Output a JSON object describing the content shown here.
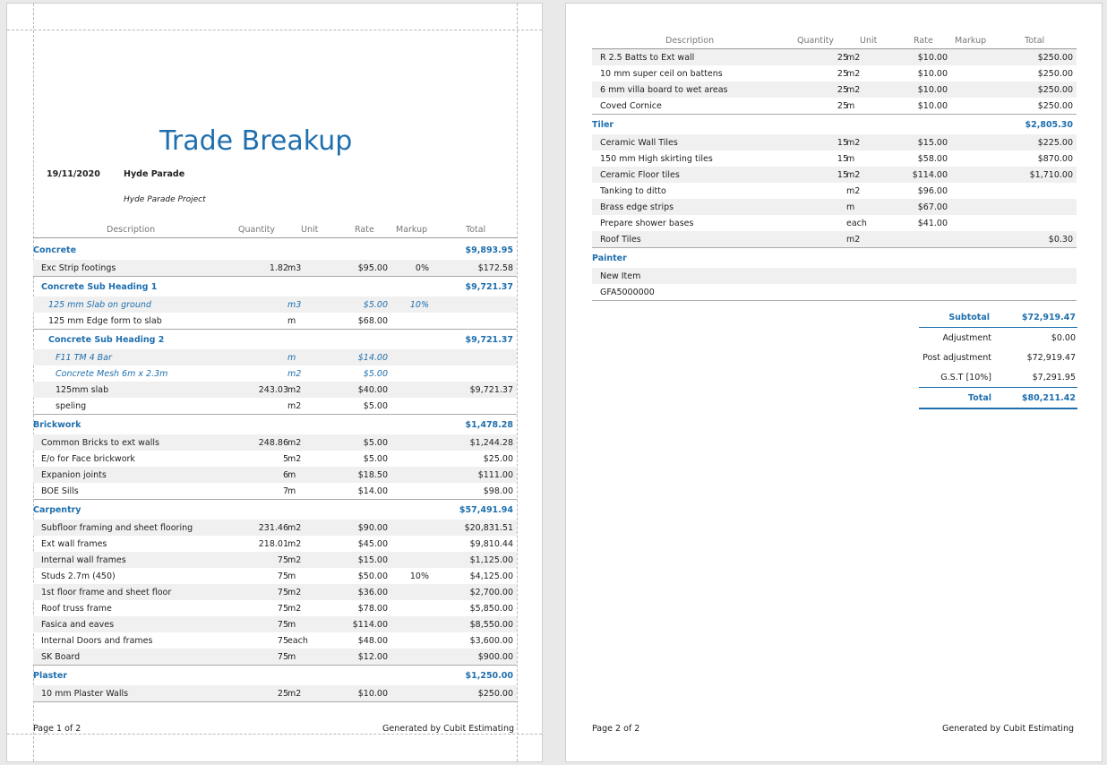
{
  "page1": {
    "title": "Trade Breakup",
    "date": "19/11/2020",
    "project_name": "Hyde Parade",
    "project_desc": "Hyde Parade Project",
    "footer_left": "Page 1 of 2",
    "footer_right": "Generated by Cubit Estimating"
  },
  "columns": {
    "description": "Description",
    "quantity": "Quantity",
    "unit": "Unit",
    "rate": "Rate",
    "markup": "Markup",
    "total": "Total"
  },
  "page1_rows": [
    {
      "type": "head",
      "level": 0,
      "desc": "Concrete",
      "qty": "",
      "unit": "",
      "rate": "",
      "markup": "",
      "total": "$9,893.95"
    },
    {
      "type": "item",
      "level": 1,
      "desc": "Exc Strip footings",
      "qty": "1.82",
      "unit": "m3",
      "rate": "$95.00",
      "markup": "0%",
      "total": "$172.58",
      "shade": true,
      "bb": true
    },
    {
      "type": "head",
      "level": 1,
      "desc": "Concrete Sub Heading 1",
      "qty": "",
      "unit": "",
      "rate": "",
      "markup": "",
      "total": "$9,721.37"
    },
    {
      "type": "sub",
      "level": 2,
      "desc": "125 mm Slab on ground",
      "qty": "",
      "unit": "m3",
      "rate": "$5.00",
      "markup": "10%",
      "total": "",
      "shade": true
    },
    {
      "type": "item",
      "level": 2,
      "desc": "125 mm Edge form to slab",
      "qty": "",
      "unit": "m",
      "rate": "$68.00",
      "markup": "",
      "total": "",
      "bb": true
    },
    {
      "type": "head",
      "level": 2,
      "desc": "Concrete Sub Heading 2",
      "qty": "",
      "unit": "",
      "rate": "",
      "markup": "",
      "total": "$9,721.37"
    },
    {
      "type": "sub",
      "level": 3,
      "desc": "F11 TM 4 Bar",
      "qty": "",
      "unit": "m",
      "rate": "$14.00",
      "markup": "",
      "total": "",
      "shade": true
    },
    {
      "type": "sub",
      "level": 3,
      "desc": "Concrete Mesh 6m x 2.3m",
      "qty": "",
      "unit": "m2",
      "rate": "$5.00",
      "markup": "",
      "total": ""
    },
    {
      "type": "item",
      "level": 3,
      "desc": "125mm slab",
      "qty": "243.03",
      "unit": "m2",
      "rate": "$40.00",
      "markup": "",
      "total": "$9,721.37",
      "shade": true
    },
    {
      "type": "item",
      "level": 3,
      "desc": "speling",
      "qty": "",
      "unit": "m2",
      "rate": "$5.00",
      "markup": "",
      "total": "",
      "bb": true
    },
    {
      "type": "head",
      "level": 0,
      "desc": "Brickwork",
      "qty": "",
      "unit": "",
      "rate": "",
      "markup": "",
      "total": "$1,478.28"
    },
    {
      "type": "item",
      "level": 1,
      "desc": "Common Bricks to ext walls",
      "qty": "248.86",
      "unit": "m2",
      "rate": "$5.00",
      "markup": "",
      "total": "$1,244.28",
      "shade": true
    },
    {
      "type": "item",
      "level": 1,
      "desc": "E/o for Face brickwork",
      "qty": "5",
      "unit": "m2",
      "rate": "$5.00",
      "markup": "",
      "total": "$25.00"
    },
    {
      "type": "item",
      "level": 1,
      "desc": "Expanion joints",
      "qty": "6",
      "unit": "m",
      "rate": "$18.50",
      "markup": "",
      "total": "$111.00",
      "shade": true
    },
    {
      "type": "item",
      "level": 1,
      "desc": "BOE Sills",
      "qty": "7",
      "unit": "m",
      "rate": "$14.00",
      "markup": "",
      "total": "$98.00",
      "bb": true
    },
    {
      "type": "head",
      "level": 0,
      "desc": "Carpentry",
      "qty": "",
      "unit": "",
      "rate": "",
      "markup": "",
      "total": "$57,491.94"
    },
    {
      "type": "item",
      "level": 1,
      "desc": "Subfloor framing and sheet flooring",
      "qty": "231.46",
      "unit": "m2",
      "rate": "$90.00",
      "markup": "",
      "total": "$20,831.51",
      "shade": true
    },
    {
      "type": "item",
      "level": 1,
      "desc": "Ext wall frames",
      "qty": "218.01",
      "unit": "m2",
      "rate": "$45.00",
      "markup": "",
      "total": "$9,810.44"
    },
    {
      "type": "item",
      "level": 1,
      "desc": "Internal wall frames",
      "qty": "75",
      "unit": "m2",
      "rate": "$15.00",
      "markup": "",
      "total": "$1,125.00",
      "shade": true
    },
    {
      "type": "item",
      "level": 1,
      "desc": "Studs 2.7m (450)",
      "qty": "75",
      "unit": "m",
      "rate": "$50.00",
      "markup": "10%",
      "total": "$4,125.00"
    },
    {
      "type": "item",
      "level": 1,
      "desc": "1st floor frame and sheet floor",
      "qty": "75",
      "unit": "m2",
      "rate": "$36.00",
      "markup": "",
      "total": "$2,700.00",
      "shade": true
    },
    {
      "type": "item",
      "level": 1,
      "desc": "Roof truss frame",
      "qty": "75",
      "unit": "m2",
      "rate": "$78.00",
      "markup": "",
      "total": "$5,850.00"
    },
    {
      "type": "item",
      "level": 1,
      "desc": "Fasica and eaves",
      "qty": "75",
      "unit": "m",
      "rate": "$114.00",
      "markup": "",
      "total": "$8,550.00",
      "shade": true
    },
    {
      "type": "item",
      "level": 1,
      "desc": "Internal Doors and frames",
      "qty": "75",
      "unit": "each",
      "rate": "$48.00",
      "markup": "",
      "total": "$3,600.00"
    },
    {
      "type": "item",
      "level": 1,
      "desc": "SK Board",
      "qty": "75",
      "unit": "m",
      "rate": "$12.00",
      "markup": "",
      "total": "$900.00",
      "shade": true,
      "bb": true
    },
    {
      "type": "head",
      "level": 0,
      "desc": "Plaster",
      "qty": "",
      "unit": "",
      "rate": "",
      "markup": "",
      "total": "$1,250.00"
    },
    {
      "type": "item",
      "level": 1,
      "desc": "10 mm Plaster Walls",
      "qty": "25",
      "unit": "m2",
      "rate": "$10.00",
      "markup": "",
      "total": "$250.00",
      "shade": true,
      "bb": true
    }
  ],
  "page2": {
    "footer_left": "Page 2 of 2",
    "footer_right": "Generated by Cubit Estimating"
  },
  "page2_rows": [
    {
      "type": "item",
      "level": 1,
      "desc": "R 2.5 Batts to Ext wall",
      "qty": "25",
      "unit": "m2",
      "rate": "$10.00",
      "markup": "",
      "total": "$250.00",
      "shade": true
    },
    {
      "type": "item",
      "level": 1,
      "desc": "10 mm super ceil on battens",
      "qty": "25",
      "unit": "m2",
      "rate": "$10.00",
      "markup": "",
      "total": "$250.00"
    },
    {
      "type": "item",
      "level": 1,
      "desc": "6 mm villa board to wet areas",
      "qty": "25",
      "unit": "m2",
      "rate": "$10.00",
      "markup": "",
      "total": "$250.00",
      "shade": true
    },
    {
      "type": "item",
      "level": 1,
      "desc": "Coved Cornice",
      "qty": "25",
      "unit": "m",
      "rate": "$10.00",
      "markup": "",
      "total": "$250.00",
      "bb": true
    },
    {
      "type": "head",
      "level": 0,
      "desc": "Tiler",
      "qty": "",
      "unit": "",
      "rate": "",
      "markup": "",
      "total": "$2,805.30"
    },
    {
      "type": "item",
      "level": 1,
      "desc": "Ceramic Wall Tiles",
      "qty": "15",
      "unit": "m2",
      "rate": "$15.00",
      "markup": "",
      "total": "$225.00",
      "shade": true
    },
    {
      "type": "item",
      "level": 1,
      "desc": "150 mm High skirting tiles",
      "qty": "15",
      "unit": "m",
      "rate": "$58.00",
      "markup": "",
      "total": "$870.00"
    },
    {
      "type": "item",
      "level": 1,
      "desc": "Ceramic Floor tiles",
      "qty": "15",
      "unit": "m2",
      "rate": "$114.00",
      "markup": "",
      "total": "$1,710.00",
      "shade": true
    },
    {
      "type": "item",
      "level": 1,
      "desc": "Tanking to ditto",
      "qty": "",
      "unit": "m2",
      "rate": "$96.00",
      "markup": "",
      "total": ""
    },
    {
      "type": "item",
      "level": 1,
      "desc": "Brass edge strips",
      "qty": "",
      "unit": "m",
      "rate": "$67.00",
      "markup": "",
      "total": "",
      "shade": true
    },
    {
      "type": "item",
      "level": 1,
      "desc": "Prepare shower bases",
      "qty": "",
      "unit": "each",
      "rate": "$41.00",
      "markup": "",
      "total": ""
    },
    {
      "type": "item",
      "level": 1,
      "desc": "Roof Tiles",
      "qty": "",
      "unit": "m2",
      "rate": "",
      "markup": "",
      "total": "$0.30",
      "shade": true,
      "bb": true
    },
    {
      "type": "head",
      "level": 0,
      "desc": "Painter",
      "qty": "",
      "unit": "",
      "rate": "",
      "markup": "",
      "total": ""
    },
    {
      "type": "item",
      "level": 1,
      "desc": "New Item",
      "qty": "",
      "unit": "",
      "rate": "",
      "markup": "",
      "total": "",
      "shade": true
    },
    {
      "type": "item",
      "level": 1,
      "desc": "GFA5000000",
      "qty": "",
      "unit": "",
      "rate": "",
      "markup": "",
      "total": "",
      "bb": true
    }
  ],
  "summary": {
    "subtotal_label": "Subtotal",
    "subtotal": "$72,919.47",
    "adjustment_label": "Adjustment",
    "adjustment": "$0.00",
    "post_label": "Post adjustment",
    "post": "$72,919.47",
    "gst_label": "G.S.T [10%]",
    "gst": "$7,291.95",
    "total_label": "Total",
    "total": "$80,211.42"
  },
  "colors": {
    "accent": "#1f6fae",
    "shade": "#f0f0f0"
  }
}
